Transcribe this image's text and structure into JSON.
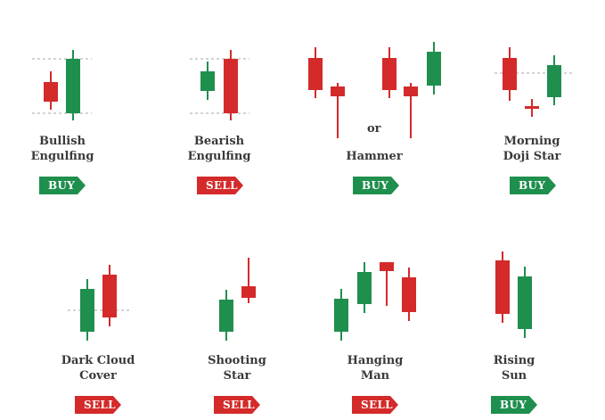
{
  "colors": {
    "green": "#1f8f4e",
    "red": "#d42a2a",
    "text": "#3a3a3a",
    "guide": "#aaaaaa"
  },
  "patterns": [
    {
      "id": "bullish-engulfing",
      "name": [
        "Bullish",
        "Engulfing"
      ],
      "signal": "BUY"
    },
    {
      "id": "bearish-engulfing",
      "name": [
        "Bearish",
        "Engulfing"
      ],
      "signal": "SELL"
    },
    {
      "id": "hammer",
      "name": [
        "Hammer"
      ],
      "signal": "BUY",
      "connector": "or"
    },
    {
      "id": "morning-doji-star",
      "name": [
        "Morning",
        "Doji Star"
      ],
      "signal": "BUY"
    },
    {
      "id": "dark-cloud-cover",
      "name": [
        "Dark Cloud",
        "Cover"
      ],
      "signal": "SELL"
    },
    {
      "id": "shooting-star",
      "name": [
        "Shooting",
        "Star"
      ],
      "signal": "SELL"
    },
    {
      "id": "hanging-man",
      "name": [
        "Hanging",
        "Man"
      ],
      "signal": "SELL"
    },
    {
      "id": "rising-sun",
      "name": [
        "Rising",
        "Sun"
      ],
      "signal": "BUY"
    }
  ]
}
